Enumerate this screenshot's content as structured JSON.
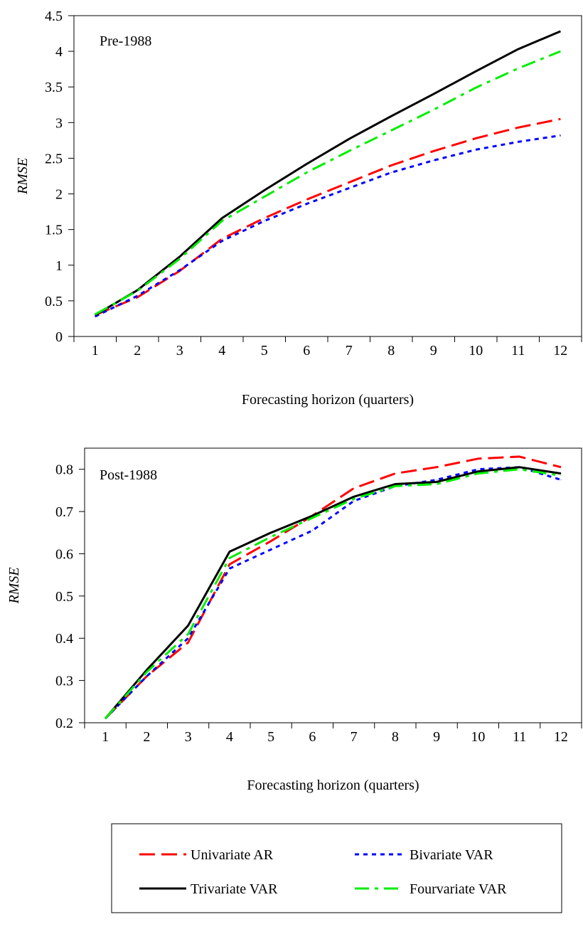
{
  "chart_data": [
    {
      "type": "line",
      "panel_label": "Pre-1988",
      "xlabel": "Forecasting horizon (quarters)",
      "ylabel": "RMSE",
      "x": [
        1,
        2,
        3,
        4,
        5,
        6,
        7,
        8,
        9,
        10,
        11,
        12
      ],
      "ylim": [
        0,
        4.5
      ],
      "yticks": [
        0,
        0.5,
        1,
        1.5,
        2,
        2.5,
        3,
        3.5,
        4,
        4.5
      ],
      "ytick_labels": [
        "0",
        "0.5",
        "1",
        "1.5",
        "2",
        "2.5",
        "3",
        "3.5",
        "4",
        "4.5"
      ],
      "grid": false,
      "series": [
        {
          "name": "Univariate AR",
          "color": "#ff0000",
          "dash": "long-dash",
          "values": [
            0.3,
            0.55,
            0.92,
            1.37,
            1.66,
            1.92,
            2.16,
            2.4,
            2.6,
            2.78,
            2.93,
            3.05
          ]
        },
        {
          "name": "Bivariate VAR",
          "color": "#0000ff",
          "dash": "dot",
          "values": [
            0.28,
            0.57,
            0.93,
            1.34,
            1.62,
            1.86,
            2.08,
            2.3,
            2.47,
            2.62,
            2.73,
            2.82
          ]
        },
        {
          "name": "Trivariate VAR",
          "color": "#000000",
          "dash": "solid",
          "values": [
            0.3,
            0.65,
            1.12,
            1.66,
            2.05,
            2.42,
            2.77,
            3.09,
            3.4,
            3.72,
            4.03,
            4.28
          ]
        },
        {
          "name": "Fourvariate VAR",
          "color": "#00ee00",
          "dash": "dash-dot",
          "values": [
            0.31,
            0.64,
            1.09,
            1.62,
            1.96,
            2.3,
            2.6,
            2.89,
            3.18,
            3.49,
            3.76,
            4.0
          ]
        }
      ]
    },
    {
      "type": "line",
      "panel_label": "Post-1988",
      "xlabel": "Forecasting horizon (quarters)",
      "ylabel": "RMSE",
      "x": [
        1,
        2,
        3,
        4,
        5,
        6,
        7,
        8,
        9,
        10,
        11,
        12
      ],
      "ylim": [
        0.2,
        0.85
      ],
      "yticks": [
        0.2,
        0.3,
        0.4,
        0.5,
        0.6,
        0.7,
        0.8
      ],
      "ytick_labels": [
        "0.2",
        "0.3",
        "0.4",
        "0.5",
        "0.6",
        "0.7",
        "0.8"
      ],
      "grid": false,
      "series": [
        {
          "name": "Univariate AR",
          "color": "#ff0000",
          "dash": "long-dash",
          "values": [
            0.21,
            0.31,
            0.39,
            0.575,
            0.63,
            0.69,
            0.755,
            0.79,
            0.805,
            0.825,
            0.83,
            0.805
          ]
        },
        {
          "name": "Bivariate VAR",
          "color": "#0000ff",
          "dash": "dot",
          "values": [
            0.21,
            0.31,
            0.4,
            0.565,
            0.61,
            0.655,
            0.725,
            0.76,
            0.775,
            0.8,
            0.805,
            0.775
          ]
        },
        {
          "name": "Trivariate VAR",
          "color": "#000000",
          "dash": "solid",
          "values": [
            0.21,
            0.325,
            0.43,
            0.605,
            0.65,
            0.69,
            0.735,
            0.765,
            0.77,
            0.795,
            0.805,
            0.79
          ]
        },
        {
          "name": "Fourvariate VAR",
          "color": "#00ee00",
          "dash": "dash-dot",
          "values": [
            0.21,
            0.32,
            0.41,
            0.59,
            0.64,
            0.685,
            0.73,
            0.76,
            0.765,
            0.79,
            0.8,
            0.785
          ]
        }
      ]
    }
  ],
  "legend": {
    "placement": "bottom",
    "items": [
      "Univariate AR",
      "Bivariate VAR",
      "Trivariate VAR",
      "Fourvariate VAR"
    ]
  }
}
